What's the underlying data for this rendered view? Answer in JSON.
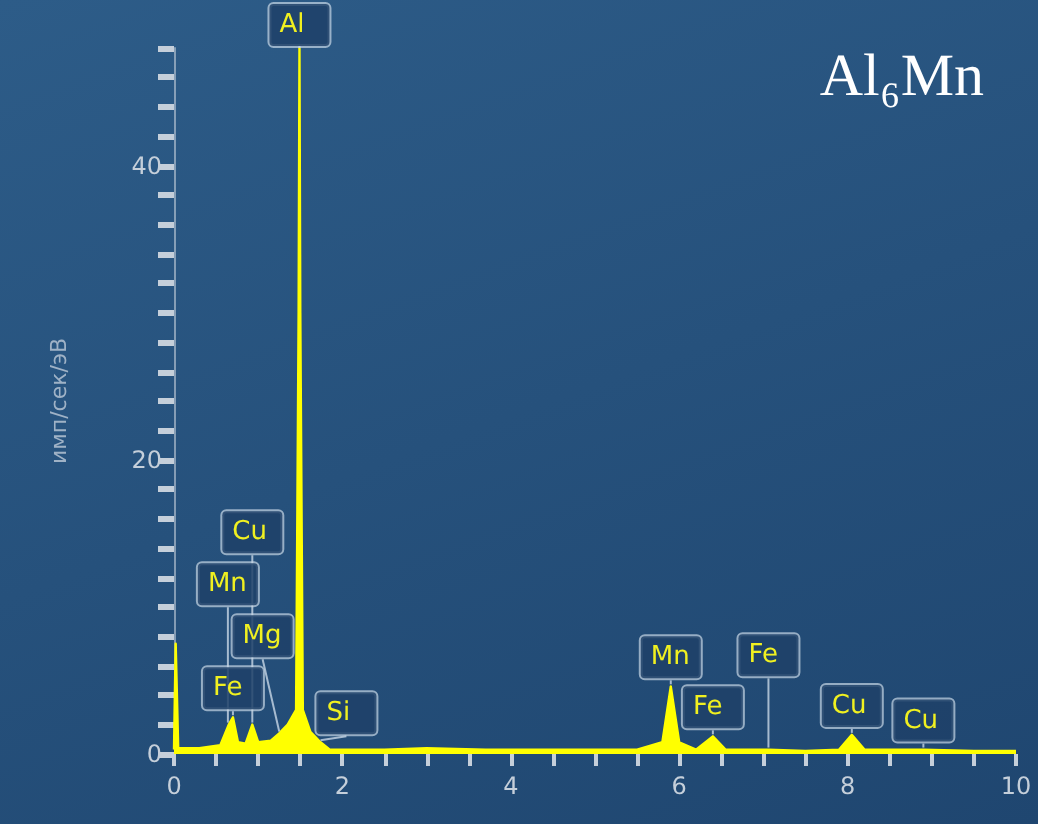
{
  "chart_data": {
    "type": "area",
    "title": "Al₆Mn",
    "ylabel": "имп/сек/эВ",
    "x": [
      0,
      0.02,
      0.05,
      0.3,
      0.55,
      0.65,
      0.7,
      0.76,
      0.85,
      0.93,
      1.0,
      1.15,
      1.25,
      1.35,
      1.45,
      1.48,
      1.49,
      1.5,
      1.53,
      1.62,
      1.74,
      1.85,
      2.5,
      3,
      3.7,
      4.5,
      5.5,
      5.8,
      5.9,
      6.0,
      6.2,
      6.4,
      6.55,
      7.06,
      7.5,
      7.9,
      8.05,
      8.2,
      8.9,
      9.5,
      10
    ],
    "series": [
      {
        "color": "#ffff00",
        "values": [
          0.3,
          7.5,
          0.4,
          0.4,
          0.6,
          2.0,
          2.5,
          0.8,
          0.7,
          2.0,
          0.8,
          0.9,
          1.4,
          2,
          3,
          30,
          48,
          30,
          3,
          1.5,
          0.8,
          0.3,
          0.3,
          0.4,
          0.3,
          0.3,
          0.3,
          0.8,
          4.6,
          0.8,
          0.3,
          1.2,
          0.3,
          0.3,
          0.2,
          0.3,
          1.3,
          0.3,
          0.3,
          0.2,
          0.2
        ]
      }
    ],
    "xlim": [
      0,
      10
    ],
    "xticks": [
      0,
      {
        "value": 0.5,
        "label": null
      },
      {
        "value": 1,
        "label": null
      },
      {
        "value": 1.5,
        "label": null
      },
      2,
      {
        "value": 2.5,
        "label": null
      },
      {
        "value": 3,
        "label": null
      },
      {
        "value": 3.5,
        "label": null
      },
      4,
      {
        "value": 4.5,
        "label": null
      },
      {
        "value": 5,
        "label": null
      },
      {
        "value": 5.5,
        "label": null
      },
      6,
      {
        "value": 6.5,
        "label": null
      },
      {
        "value": 7,
        "label": null
      },
      {
        "value": 7.5,
        "label": null
      },
      8,
      {
        "value": 8.5,
        "label": null
      },
      {
        "value": 9,
        "label": null
      },
      {
        "value": 9.5,
        "label": null
      },
      10
    ],
    "ylim": [
      0,
      48
    ],
    "yticks": [
      0,
      {
        "value": 2,
        "label": null
      },
      {
        "value": 4,
        "label": null
      },
      {
        "value": 6,
        "label": null
      },
      {
        "value": 8,
        "label": null
      },
      {
        "value": 10,
        "label": null
      },
      {
        "value": 12,
        "label": null
      },
      {
        "value": 14,
        "label": null
      },
      {
        "value": 16,
        "label": null
      },
      {
        "value": 18,
        "label": null
      },
      20,
      {
        "value": 22,
        "label": null
      },
      {
        "value": 24,
        "label": null
      },
      {
        "value": 26,
        "label": null
      },
      {
        "value": 28,
        "label": null
      },
      {
        "value": 30,
        "label": null
      },
      {
        "value": 32,
        "label": null
      },
      {
        "value": 34,
        "label": null
      },
      {
        "value": 36,
        "label": null
      },
      {
        "value": 38,
        "label": null
      },
      40,
      {
        "value": 42,
        "label": null
      },
      {
        "value": 44,
        "label": null
      },
      {
        "value": 46,
        "label": null
      },
      {
        "value": 48,
        "label": null
      }
    ],
    "grid": false,
    "annotations": [
      {
        "text": "Al",
        "x": 1.49,
        "y": 48
      },
      {
        "text": "Fe",
        "x": 0.7,
        "y": 2.5
      },
      {
        "text": "Si",
        "x": 1.74,
        "y": 0.8
      },
      {
        "text": "Mg",
        "x": 1.25,
        "y": 1.4
      },
      {
        "text": "Mn",
        "x": 0.64,
        "y": 2.0
      },
      {
        "text": "Cu",
        "x": 0.93,
        "y": 2.0
      },
      {
        "text": "Mn",
        "x": 5.9,
        "y": 4.6
      },
      {
        "text": "Fe",
        "x": 6.4,
        "y": 1.2
      },
      {
        "text": "Fe",
        "x": 7.06,
        "y": 0.3
      },
      {
        "text": "Cu",
        "x": 8.05,
        "y": 1.3
      },
      {
        "text": "Cu",
        "x": 8.9,
        "y": 0.3
      }
    ]
  }
}
